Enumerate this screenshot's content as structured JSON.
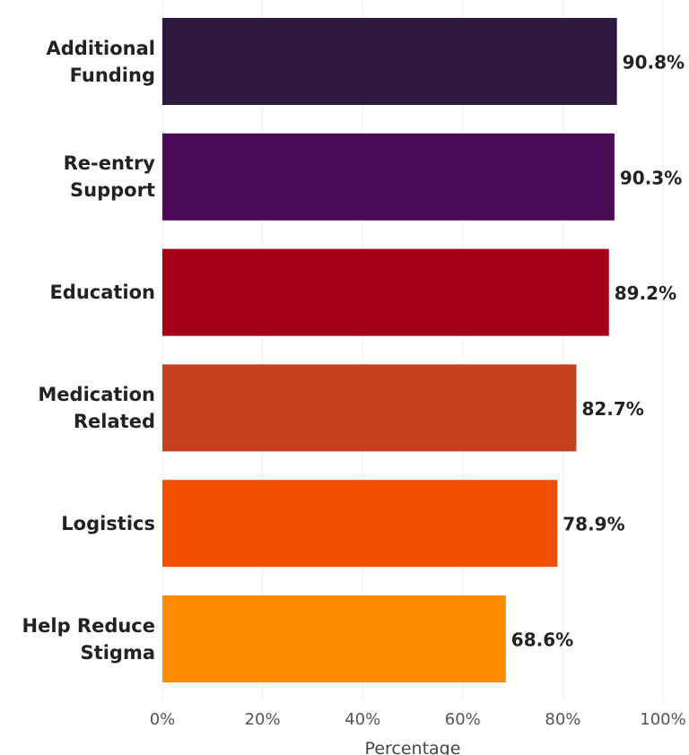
{
  "chart_data": {
    "type": "barh",
    "categories": [
      "Additional Funding",
      "Re-entry Support",
      "Education",
      "Medication Related",
      "Logistics",
      "Help Reduce Stigma"
    ],
    "values": [
      90.8,
      90.3,
      89.2,
      82.7,
      78.9,
      68.6
    ],
    "value_labels": [
      "90.8%",
      "90.3%",
      "89.2%",
      "82.7%",
      "78.9%",
      "68.6%"
    ],
    "colors": [
      "#2e1a3e",
      "#4a0a55",
      "#a5001a",
      "#c5401f",
      "#f05000",
      "#ff8c00"
    ],
    "xlabel": "Percentage",
    "xlim": [
      0,
      100
    ],
    "xticks": [
      {
        "value": 0,
        "label": "0%"
      },
      {
        "value": 20,
        "label": "20%"
      },
      {
        "value": 40,
        "label": "40%"
      },
      {
        "value": 60,
        "label": "60%"
      },
      {
        "value": 80,
        "label": "80%"
      },
      {
        "value": 100,
        "label": "100%"
      }
    ],
    "grid": true
  }
}
